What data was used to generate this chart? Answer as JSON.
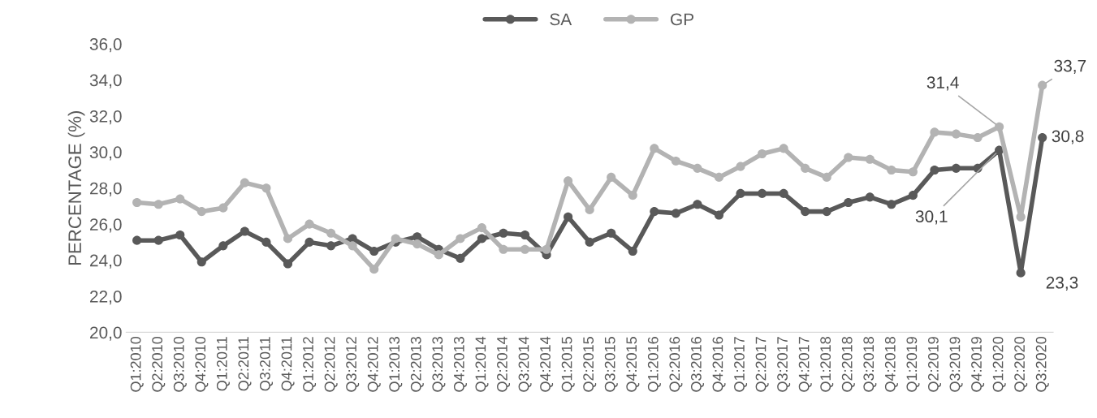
{
  "chart_data": {
    "type": "line",
    "ylabel": "PERCENTAGE (%)",
    "categories": [
      "Q1:2010",
      "Q2:2010",
      "Q3:2010",
      "Q4:2010",
      "Q1:2011",
      "Q2:2011",
      "Q3:2011",
      "Q4:2011",
      "Q1:2012",
      "Q2:2012",
      "Q3:2012",
      "Q4:2012",
      "Q1:2013",
      "Q2:2013",
      "Q3:2013",
      "Q4:2013",
      "Q1:2014",
      "Q2:2014",
      "Q3:2014",
      "Q4:2014",
      "Q1:2015",
      "Q2:2015",
      "Q3:2015",
      "Q4:2015",
      "Q1:2016",
      "Q2:2016",
      "Q3:2016",
      "Q4:2016",
      "Q1:2017",
      "Q2:2017",
      "Q3:2017",
      "Q4:2017",
      "Q1:2018",
      "Q2:2018",
      "Q3:2018",
      "Q4:2018",
      "Q1:2019",
      "Q2:2019",
      "Q3:2019",
      "Q4:2019",
      "Q1:2020",
      "Q2:2020",
      "Q3:2020"
    ],
    "series": [
      {
        "name": "SA",
        "color": "#595959",
        "values": [
          25.1,
          25.1,
          25.4,
          23.9,
          24.8,
          25.6,
          25.0,
          23.8,
          25.0,
          24.8,
          25.2,
          24.5,
          25.0,
          25.3,
          24.6,
          24.1,
          25.2,
          25.5,
          25.4,
          24.3,
          26.4,
          25.0,
          25.5,
          24.5,
          26.7,
          26.6,
          27.1,
          26.5,
          27.7,
          27.7,
          27.7,
          26.7,
          26.7,
          27.2,
          27.5,
          27.1,
          27.6,
          29.0,
          29.1,
          29.1,
          30.1,
          23.3,
          30.8
        ],
        "value_labels": [
          null,
          null,
          null,
          null,
          null,
          null,
          null,
          null,
          null,
          null,
          null,
          null,
          null,
          null,
          null,
          null,
          null,
          null,
          null,
          null,
          null,
          null,
          null,
          null,
          null,
          null,
          null,
          null,
          null,
          null,
          null,
          null,
          null,
          null,
          null,
          null,
          null,
          null,
          null,
          null,
          "30,1",
          "23,3",
          "30,8"
        ]
      },
      {
        "name": "GP",
        "color": "#b3b3b3",
        "values": [
          27.2,
          27.1,
          27.4,
          26.7,
          26.9,
          28.3,
          28.0,
          25.2,
          26.0,
          25.5,
          24.8,
          23.5,
          25.2,
          24.9,
          24.3,
          25.2,
          25.8,
          24.6,
          24.6,
          24.6,
          28.4,
          26.8,
          28.6,
          27.6,
          30.2,
          29.5,
          29.1,
          28.6,
          29.2,
          29.9,
          30.2,
          29.1,
          28.6,
          29.7,
          29.6,
          29.0,
          28.9,
          31.1,
          31.0,
          30.8,
          31.4,
          26.4,
          33.7
        ],
        "value_labels": [
          null,
          null,
          null,
          null,
          null,
          null,
          null,
          null,
          null,
          null,
          null,
          null,
          null,
          null,
          null,
          null,
          null,
          null,
          null,
          null,
          null,
          null,
          null,
          null,
          null,
          null,
          null,
          null,
          null,
          null,
          null,
          null,
          null,
          null,
          null,
          null,
          null,
          null,
          null,
          null,
          "31,4",
          null,
          "33,7"
        ]
      }
    ],
    "ylim": [
      20,
      36
    ],
    "yticks": [
      {
        "value": 20,
        "label": "20,0"
      },
      {
        "value": 22,
        "label": "22,0"
      },
      {
        "value": 24,
        "label": "24,0"
      },
      {
        "value": 26,
        "label": "26,0"
      },
      {
        "value": 28,
        "label": "28,0"
      },
      {
        "value": 30,
        "label": "30,0"
      },
      {
        "value": 32,
        "label": "32,0"
      },
      {
        "value": 34,
        "label": "34,0"
      },
      {
        "value": 36,
        "label": "36,0"
      }
    ],
    "grid": false,
    "legend": "top",
    "marker": "circle",
    "line_style": "solid"
  }
}
